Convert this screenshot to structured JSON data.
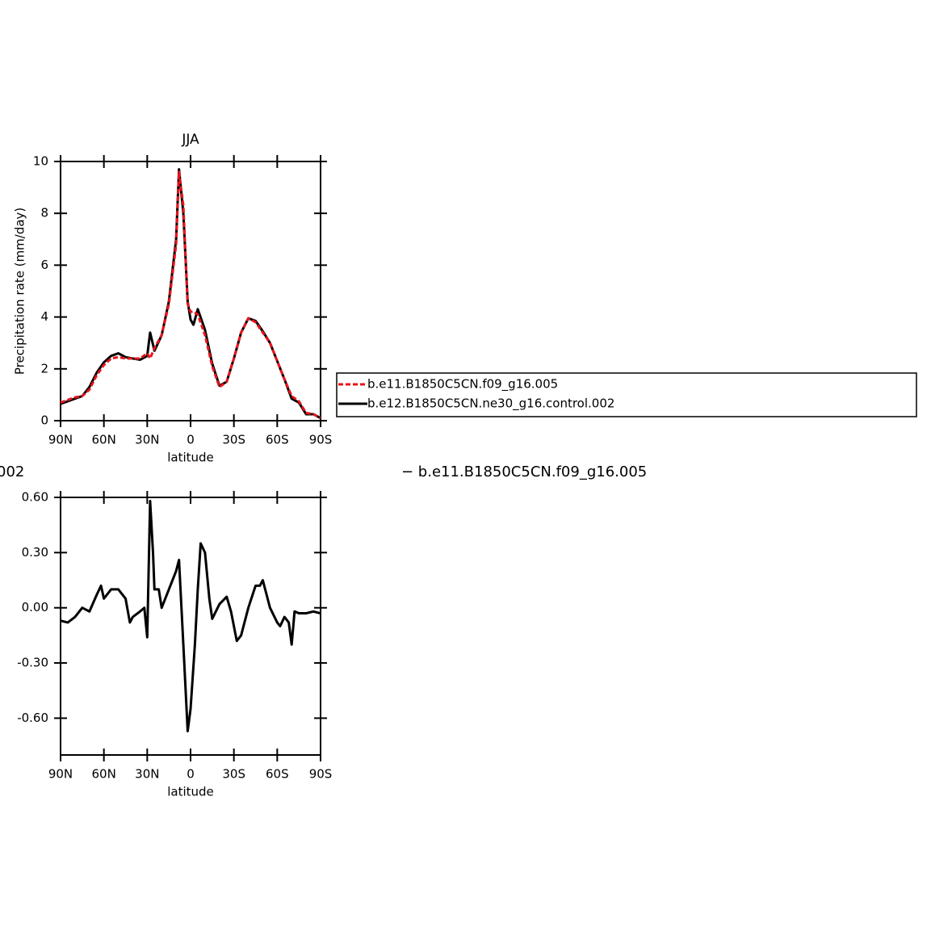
{
  "chart_data": [
    {
      "type": "line",
      "title": "JJA",
      "xlabel": "latitude",
      "ylabel": "Precipitation rate (mm/day)",
      "x": [
        90,
        85,
        80,
        75,
        70,
        65,
        60,
        55,
        50,
        45,
        40,
        35,
        30,
        28,
        25,
        20,
        15,
        10,
        8,
        5,
        2,
        0,
        -2,
        -5,
        -10,
        -15,
        -20,
        -25,
        -30,
        -35,
        -40,
        -45,
        -50,
        -55,
        -60,
        -65,
        -70,
        -75,
        -80,
        -85,
        -90
      ],
      "series": [
        {
          "name": "b.e11.B1850C5CN.f09_g16.005",
          "color": "#e8141c",
          "dash": true,
          "values": [
            0.7,
            0.8,
            0.9,
            0.95,
            1.2,
            1.75,
            2.15,
            2.4,
            2.45,
            2.4,
            2.4,
            2.4,
            2.6,
            2.4,
            2.8,
            3.3,
            4.5,
            6.8,
            9.6,
            8.3,
            4.5,
            4.2,
            4.2,
            4.1,
            3.3,
            2.1,
            1.3,
            1.5,
            2.4,
            3.4,
            3.95,
            3.8,
            3.4,
            3.0,
            2.3,
            1.6,
            0.95,
            0.75,
            0.3,
            0.25,
            0.1
          ]
        },
        {
          "name": "b.e12.B1850C5CN.ne30_g16.control.002",
          "color": "#000000",
          "dash": false,
          "values": [
            0.65,
            0.75,
            0.85,
            0.95,
            1.3,
            1.85,
            2.25,
            2.5,
            2.6,
            2.45,
            2.4,
            2.35,
            2.5,
            3.4,
            2.7,
            3.3,
            4.6,
            7.0,
            9.7,
            8.0,
            4.6,
            3.9,
            3.7,
            4.3,
            3.5,
            2.2,
            1.35,
            1.5,
            2.4,
            3.4,
            3.95,
            3.85,
            3.45,
            3.0,
            2.3,
            1.6,
            0.85,
            0.7,
            0.25,
            0.25,
            0.1
          ]
        }
      ],
      "xlim": [
        90,
        -90
      ],
      "xticks": [
        {
          "value": 90,
          "label": "90N"
        },
        {
          "value": 60,
          "label": "60N"
        },
        {
          "value": 30,
          "label": "30N"
        },
        0,
        {
          "value": -30,
          "label": "30S"
        },
        {
          "value": -60,
          "label": "60S"
        },
        {
          "value": -90,
          "label": "90S"
        }
      ],
      "ylim": [
        0,
        10
      ],
      "yticks": [
        0,
        2,
        4,
        6,
        8,
        10
      ],
      "legend": "right"
    },
    {
      "type": "line",
      "title_left": "002",
      "title_right": "− b.e11.B1850C5CN.f09_g16.005",
      "xlabel": "latitude",
      "x": [
        90,
        85,
        80,
        75,
        70,
        65,
        62,
        60,
        55,
        50,
        45,
        42,
        40,
        35,
        32,
        30,
        28,
        26,
        25,
        22,
        20,
        15,
        10,
        8,
        5,
        2,
        0,
        -3,
        -5,
        -7,
        -10,
        -13,
        -15,
        -20,
        -25,
        -28,
        -32,
        -35,
        -40,
        -45,
        -48,
        -50,
        -55,
        -60,
        -62,
        -65,
        -68,
        -70,
        -72,
        -75,
        -80,
        -85,
        -90
      ],
      "series": [
        {
          "color": "#000000",
          "dash": false,
          "values": [
            -0.07,
            -0.08,
            -0.05,
            0.0,
            -0.02,
            0.07,
            0.12,
            0.05,
            0.1,
            0.1,
            0.05,
            -0.08,
            -0.05,
            -0.02,
            0.0,
            -0.16,
            0.58,
            0.3,
            0.1,
            0.1,
            0.0,
            0.1,
            0.2,
            0.26,
            -0.2,
            -0.67,
            -0.55,
            -0.2,
            0.1,
            0.35,
            0.3,
            0.05,
            -0.06,
            0.02,
            0.06,
            -0.02,
            -0.18,
            -0.15,
            0.0,
            0.12,
            0.12,
            0.15,
            0.0,
            -0.08,
            -0.1,
            -0.05,
            -0.08,
            -0.2,
            -0.02,
            -0.03,
            -0.03,
            -0.02,
            -0.03
          ]
        }
      ],
      "xlim": [
        90,
        -90
      ],
      "xticks": [
        {
          "value": 90,
          "label": "90N"
        },
        {
          "value": 60,
          "label": "60N"
        },
        {
          "value": 30,
          "label": "30N"
        },
        0,
        {
          "value": -30,
          "label": "30S"
        },
        {
          "value": -60,
          "label": "60S"
        },
        {
          "value": -90,
          "label": "90S"
        }
      ],
      "ylim": [
        -0.8,
        0.6
      ],
      "yticks": [
        {
          "value": -0.6,
          "label": "-0.60"
        },
        {
          "value": -0.3,
          "label": "-0.30"
        },
        {
          "value": 0,
          "label": "0.00"
        },
        {
          "value": 0.3,
          "label": "0.30"
        },
        {
          "value": 0.6,
          "label": "0.60"
        }
      ]
    }
  ]
}
